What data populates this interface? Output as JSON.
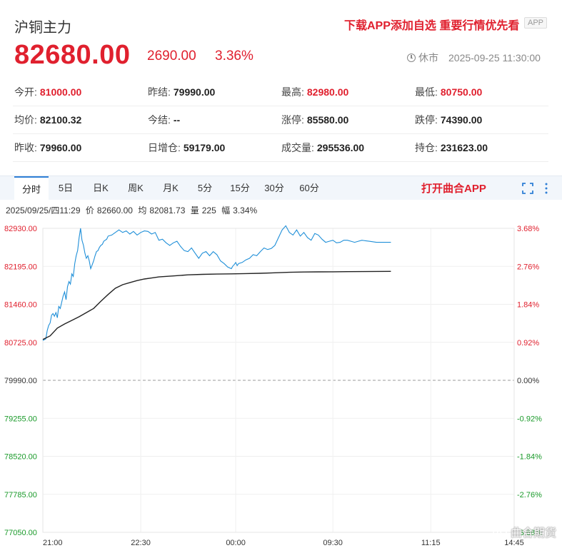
{
  "header": {
    "title": "沪铜主力",
    "promo": "下载APP添加自选 重要行情优先看",
    "app_badge": "APP",
    "price": "82680.00",
    "change": "2690.00",
    "change_pct": "3.36%",
    "status": "休市",
    "datetime": "2025-09-25 11:30:00"
  },
  "quote": {
    "rows": [
      [
        {
          "label": "今开:",
          "value": "81000.00",
          "color": "#e0202e"
        },
        {
          "label": "昨结:",
          "value": "79990.00",
          "color": "#222222"
        },
        {
          "label": "最高:",
          "value": "82980.00",
          "color": "#e0202e"
        },
        {
          "label": "最低:",
          "value": "80750.00",
          "color": "#e0202e"
        }
      ],
      [
        {
          "label": "均价:",
          "value": "82100.32",
          "color": "#222222"
        },
        {
          "label": "今结:",
          "value": "--",
          "color": "#222222"
        },
        {
          "label": "涨停:",
          "value": "85580.00",
          "color": "#222222"
        },
        {
          "label": "跌停:",
          "value": "74390.00",
          "color": "#222222"
        }
      ],
      [
        {
          "label": "昨收:",
          "value": "79960.00",
          "color": "#222222"
        },
        {
          "label": "日增仓:",
          "value": "59179.00",
          "color": "#222222"
        },
        {
          "label": "成交量:",
          "value": "295536.00",
          "color": "#222222"
        },
        {
          "label": "持仓:",
          "value": "231623.00",
          "color": "#222222"
        }
      ]
    ]
  },
  "tabs": {
    "items": [
      "分时",
      "5日",
      "日K",
      "周K",
      "月K",
      "5分",
      "15分",
      "30分",
      "60分"
    ],
    "active": 0,
    "open_app": "打开曲合APP",
    "fullscreen_icon": "fullscreen-icon",
    "more_icon": "more-vertical-icon"
  },
  "info": {
    "date": "2025/09/25/四11:29",
    "price_label": "价",
    "price": "82660.00",
    "avg_label": "均",
    "avg": "82081.73",
    "vol_label": "量",
    "vol": "225",
    "amp_label": "幅",
    "amp": "3.34%"
  },
  "chart_data": {
    "type": "line",
    "y_ticks_left": [
      "82930.00",
      "82195.00",
      "81460.00",
      "80725.00",
      "79990.00",
      "79255.00",
      "78520.00",
      "77785.00",
      "77050.00"
    ],
    "y_ticks_right": [
      "3.68%",
      "2.76%",
      "1.84%",
      "0.92%",
      "0.00%",
      "-0.92%",
      "-1.84%",
      "-2.76%",
      "-3.68%"
    ],
    "ylim": [
      77050,
      82930
    ],
    "reference": 79990,
    "x_ticks": [
      "21:00",
      "22:30",
      "00:00",
      "09:30",
      "11:15",
      "14:45"
    ],
    "series": [
      {
        "color": "#1f8fd8",
        "x": [
          0,
          4,
          6,
          8,
          10,
          12,
          14,
          16,
          18,
          20,
          22,
          24,
          26,
          28,
          30,
          32,
          34,
          36,
          38,
          40,
          42,
          44,
          46,
          48,
          50,
          52,
          54,
          56,
          58,
          60,
          62,
          64,
          66,
          68,
          70,
          72,
          74,
          76,
          78,
          80,
          82,
          84,
          86,
          88,
          90,
          95,
          100,
          105,
          110,
          115,
          120,
          125,
          130,
          135,
          140,
          145,
          150,
          155,
          160,
          165,
          170,
          175,
          180,
          185,
          190,
          195,
          200,
          205,
          210,
          215,
          220,
          225,
          230,
          235,
          240,
          245,
          250,
          255,
          260,
          262,
          264,
          266,
          268,
          270,
          275,
          280,
          285,
          290,
          295,
          300,
          305,
          310,
          315,
          320,
          325,
          330,
          335,
          340,
          345,
          350,
          355,
          360,
          365,
          370,
          375,
          380,
          385,
          390,
          395,
          400,
          405,
          410,
          415,
          420,
          425,
          430,
          435,
          440,
          445,
          450,
          455,
          460,
          465,
          470,
          475,
          480
        ],
        "values": [
          80760,
          80790,
          80950,
          81050,
          81100,
          81250,
          81280,
          81230,
          81300,
          81200,
          81420,
          81380,
          81500,
          81620,
          81700,
          81550,
          81800,
          81900,
          81850,
          82050,
          82000,
          82250,
          82400,
          82500,
          82750,
          82930,
          82700,
          82600,
          82450,
          82350,
          82400,
          82300,
          82150,
          82220,
          82300,
          82400,
          82480,
          82500,
          82560,
          82600,
          82620,
          82680,
          82700,
          82720,
          82780,
          82800,
          82850,
          82900,
          82850,
          82880,
          82820,
          82870,
          82800,
          82850,
          82880,
          82870,
          82820,
          82850,
          82700,
          82720,
          82650,
          82600,
          82650,
          82680,
          82580,
          82500,
          82480,
          82550,
          82450,
          82350,
          82450,
          82480,
          82400,
          82480,
          82420,
          82300,
          82250,
          82180,
          82150,
          82200,
          82230,
          82270,
          82210,
          82250,
          82270,
          82320,
          82350,
          82420,
          82400,
          82480,
          82550,
          82520,
          82540,
          82600,
          82750,
          82900,
          82980,
          82850,
          82800,
          82900,
          82780,
          82850,
          82750,
          82700,
          82830,
          82800,
          82720,
          82660,
          82680,
          82700,
          82650,
          82660,
          82700,
          82700,
          82680,
          82660,
          82680,
          82700,
          82690,
          82680,
          82670,
          82660,
          82660,
          82660,
          82660,
          82660
        ],
        "x_max": 480
      },
      {
        "color": "#222222",
        "x": [
          0,
          10,
          20,
          30,
          40,
          50,
          60,
          70,
          80,
          90,
          100,
          110,
          120,
          130,
          140,
          150,
          160,
          180,
          200,
          220,
          240,
          260,
          280,
          300,
          320,
          340,
          360,
          380,
          400,
          420,
          440,
          460,
          480
        ],
        "values": [
          80780,
          80850,
          81000,
          81080,
          81150,
          81220,
          81300,
          81380,
          81520,
          81650,
          81770,
          81840,
          81880,
          81920,
          81950,
          81970,
          81990,
          82010,
          82030,
          82040,
          82045,
          82050,
          82055,
          82060,
          82070,
          82080,
          82085,
          82088,
          82090,
          82092,
          82094,
          82096,
          82098
        ]
      }
    ],
    "x_tick_positions": [
      0,
      135,
      266,
      400,
      535,
      650
    ],
    "x_full_range": 650
  },
  "watermark": {
    "icon": "weibo-icon",
    "text": "曲合期货"
  }
}
